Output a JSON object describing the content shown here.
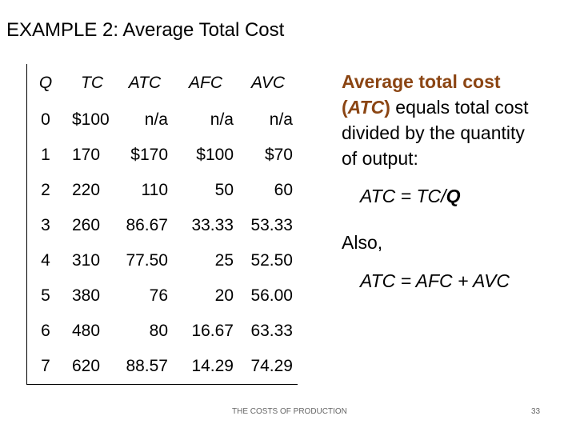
{
  "header": {
    "title": "EXAMPLE 2:  Average Total Cost"
  },
  "table": {
    "columns": [
      "Q",
      "TC",
      "ATC",
      "AFC",
      "AVC"
    ],
    "rows": [
      [
        "0",
        "$100",
        "n/a",
        "n/a",
        "n/a"
      ],
      [
        "1",
        "170",
        "$170",
        "$100",
        "$70"
      ],
      [
        "2",
        "220",
        "110",
        "50",
        "60"
      ],
      [
        "3",
        "260",
        "86.67",
        "33.33",
        "53.33"
      ],
      [
        "4",
        "310",
        "77.50",
        "25",
        "52.50"
      ],
      [
        "5",
        "380",
        "76",
        "20",
        "56.00"
      ],
      [
        "6",
        "480",
        "80",
        "16.67",
        "63.33"
      ],
      [
        "7",
        "620",
        "88.57",
        "14.29",
        "74.29"
      ]
    ]
  },
  "sidebar": {
    "definition": [
      "Average total cost",
      "(",
      "ATC",
      ")",
      " equals total cost divided by the quantity of output:"
    ],
    "formula": [
      "ATC = TC/",
      "Q"
    ],
    "also": "Also,",
    "identity": "ATC = AFC + AVC"
  },
  "footer": {
    "text": "THE COSTS OF PRODUCTION",
    "page": "33"
  }
}
